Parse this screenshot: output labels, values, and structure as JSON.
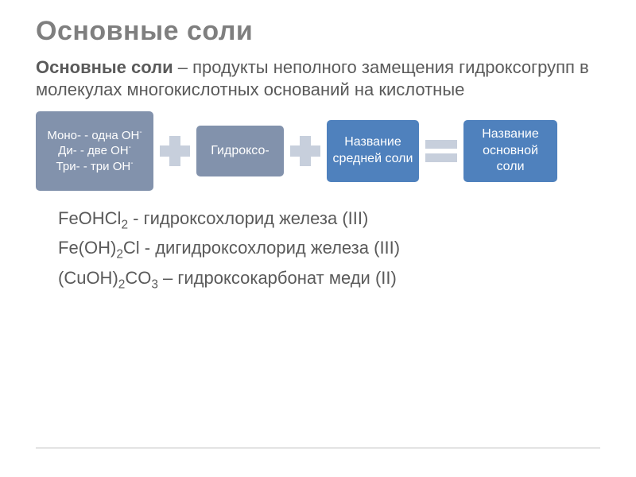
{
  "title": "Основные соли",
  "intro_bold": "Основные соли",
  "intro_rest": " – продукты неполного замещения гидроксогрупп в молекулах многокислотных оснований на кислотные",
  "equation": {
    "box1_line1_pre": "Моно- - одна ",
    "box1_line1_unit": "OH",
    "box1_line2_pre": "Ди- - две ",
    "box1_line2_unit": "OH",
    "box1_line3_pre": "Три- - три ",
    "box1_line3_unit": "OH",
    "minus": "-",
    "box2": "Гидроксо-",
    "box3": "Название средней соли",
    "box4": "Название основной соли"
  },
  "examples": {
    "line1_formula_pre": "FeOHCl",
    "line1_sub": "2",
    "line1_rest": " - гидроксохлорид железа (III)",
    "line2_formula_pre": "Fe(OH)",
    "line2_sub": "2",
    "line2_mid": "Cl",
    "line2_rest": " - дигидроксохлорид железа (III)",
    "line3_formula_pre": "(CuOH)",
    "line3_sub1": "2",
    "line3_mid": "CO",
    "line3_sub2": "3",
    "line3_rest": " – гидроксокарбонат меди (II)"
  },
  "colors": {
    "title": "#7f7f7f",
    "text": "#5a5a5a",
    "box_gray": "#8292ac",
    "box_blue": "#4f81bd",
    "operator": "#c7cfdc",
    "divider": "#bfbfbf"
  }
}
